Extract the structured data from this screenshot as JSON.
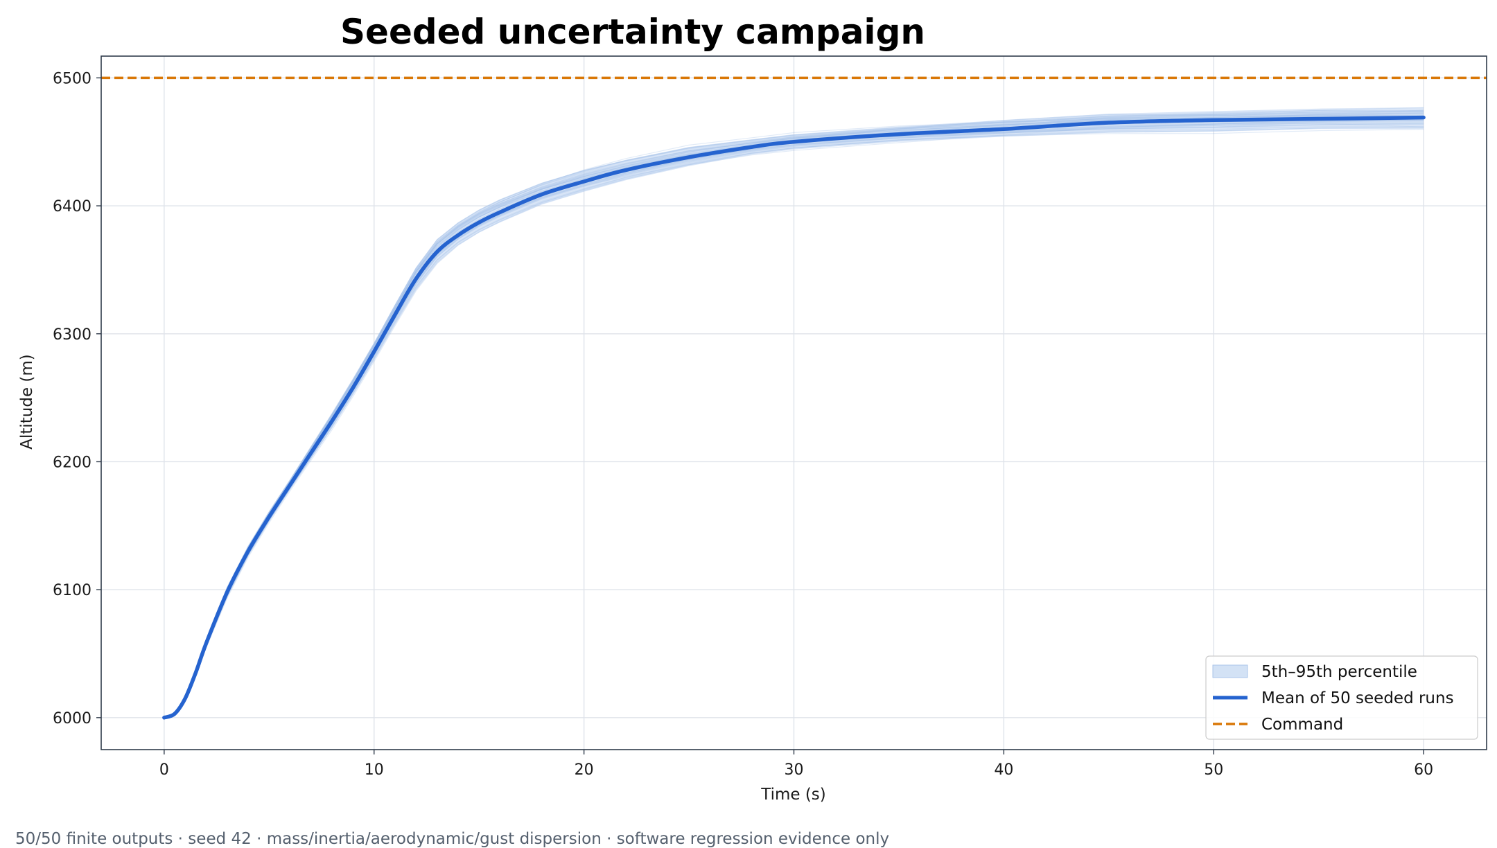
{
  "chart_data": {
    "type": "line",
    "title": "Seeded uncertainty campaign",
    "xlabel": "Time (s)",
    "ylabel": "Altitude (m)",
    "xlim": [
      -3,
      63
    ],
    "ylim": [
      5975,
      6517
    ],
    "xticks": [
      0,
      10,
      20,
      30,
      40,
      50,
      60
    ],
    "yticks": [
      6000,
      6100,
      6200,
      6300,
      6400,
      6500
    ],
    "grid": true,
    "legend_position": "lower-right",
    "command": {
      "name": "Command",
      "value": 6500,
      "color": "#d97706"
    },
    "mean": {
      "name": "Mean of 50 seeded runs",
      "color": "#2563cf",
      "x": [
        0,
        0.5,
        1,
        1.5,
        2,
        3,
        4,
        5,
        6,
        7,
        8,
        9,
        10,
        11,
        12,
        13,
        14,
        15,
        16,
        18,
        20,
        22,
        25,
        28,
        30,
        35,
        40,
        45,
        50,
        55,
        60
      ],
      "y": [
        6000,
        6003,
        6015,
        6035,
        6058,
        6098,
        6130,
        6157,
        6182,
        6207,
        6232,
        6258,
        6286,
        6315,
        6343,
        6364,
        6377,
        6387,
        6395,
        6409,
        6419,
        6428,
        6438,
        6446,
        6450,
        6456,
        6460,
        6465,
        6467,
        6468,
        6469
      ]
    },
    "band": {
      "name": "5th–95th percentile",
      "color": "#bcd2f0",
      "x": [
        0,
        0.5,
        1,
        1.5,
        2,
        3,
        4,
        5,
        6,
        7,
        8,
        9,
        10,
        11,
        12,
        13,
        14,
        15,
        16,
        18,
        20,
        22,
        25,
        28,
        30,
        35,
        40,
        45,
        50,
        55,
        60
      ],
      "lower": [
        6000,
        6003,
        6014,
        6033,
        6055,
        6094,
        6126,
        6153,
        6178,
        6202,
        6226,
        6252,
        6279,
        6307,
        6334,
        6355,
        6369,
        6379,
        6387,
        6401,
        6411,
        6420,
        6431,
        6440,
        6444,
        6450,
        6454,
        6457,
        6458,
        6460,
        6460
      ],
      "upper": [
        6000,
        6003,
        6016,
        6037,
        6061,
        6102,
        6134,
        6161,
        6186,
        6212,
        6238,
        6265,
        6293,
        6323,
        6352,
        6374,
        6387,
        6397,
        6405,
        6418,
        6428,
        6436,
        6446,
        6452,
        6456,
        6462,
        6467,
        6472,
        6474,
        6476,
        6477
      ]
    }
  },
  "footnote": "50/50 finite outputs · seed 42 · mass/inertia/aerodynamic/gust dispersion · software regression evidence only"
}
